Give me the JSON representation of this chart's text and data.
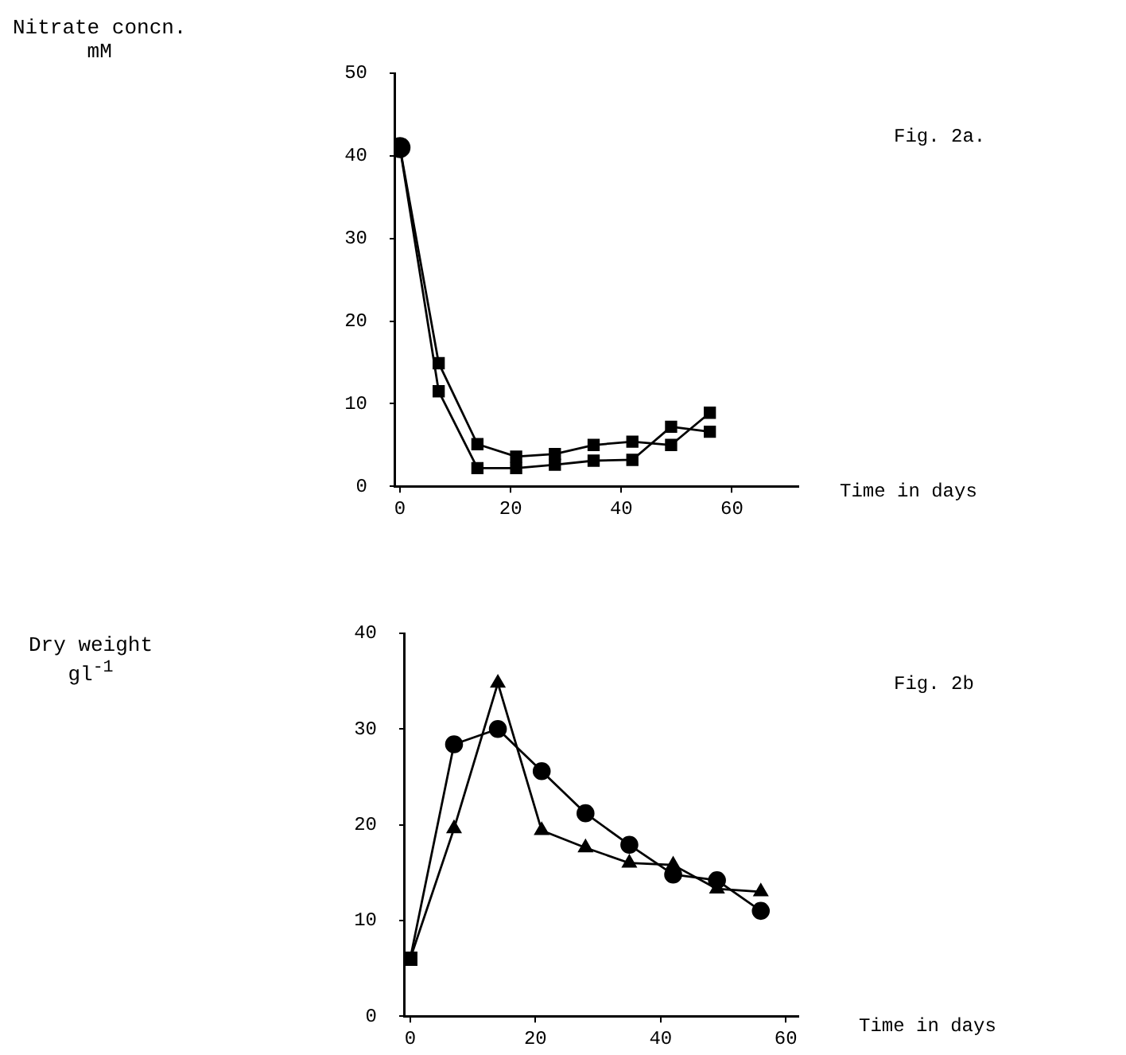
{
  "chart_data": [
    {
      "type": "line",
      "annotations": [
        "Fig. 2a."
      ],
      "ylabel": "Nitrate concn.\nmM",
      "xlabel": "Time in days",
      "xlim": [
        -1,
        72
      ],
      "xticks": [
        0,
        20,
        40,
        60
      ],
      "ylim": [
        0,
        50
      ],
      "yticks": [
        0,
        10,
        20,
        30,
        40,
        50
      ],
      "grid": false,
      "legend": false,
      "line_style": "solid",
      "series": [
        {
          "color": "#000000",
          "marker": "square",
          "x": [
            0,
            7,
            14,
            21,
            28,
            35,
            42,
            49,
            56
          ],
          "values": [
            41,
            14.9,
            5.1,
            3.6,
            3.9,
            5,
            5.4,
            5,
            8.9
          ]
        },
        {
          "color": "#000000",
          "marker": "square",
          "x": [
            0,
            7,
            14,
            21,
            28,
            35,
            42,
            49,
            56
          ],
          "values": [
            41,
            11.5,
            2.2,
            2.2,
            2.6,
            3.1,
            3.2,
            7.2,
            6.6
          ]
        },
        {
          "type": "scatter",
          "color": "#000000",
          "marker": "circle",
          "x": [
            0
          ],
          "values": [
            41
          ]
        }
      ]
    },
    {
      "type": "line",
      "annotations": [
        "Fig. 2b"
      ],
      "ylabel": "Dry weight\ngl$^{-1}$",
      "xlabel": "Time in days",
      "xlim": [
        -1,
        62
      ],
      "xticks": [
        0,
        20,
        40,
        60
      ],
      "ylim": [
        0,
        40
      ],
      "yticks": [
        0,
        10,
        20,
        30,
        40
      ],
      "grid": false,
      "legend": false,
      "line_style": "solid",
      "series": [
        {
          "color": "#000000",
          "marker": "circle",
          "x": [
            0,
            7,
            14,
            21,
            28,
            35,
            42,
            49,
            56
          ],
          "values": [
            6,
            28.4,
            30,
            25.6,
            21.2,
            17.9,
            14.8,
            14.2,
            11
          ]
        },
        {
          "color": "#000000",
          "marker": "triangle",
          "x": [
            0,
            7,
            14,
            21,
            28,
            35,
            42,
            49,
            56
          ],
          "values": [
            6,
            19.6,
            34.8,
            19.4,
            17.6,
            16,
            15.8,
            13.3,
            13
          ]
        },
        {
          "type": "scatter",
          "color": "#000000",
          "marker": "square",
          "x": [
            0
          ],
          "values": [
            6
          ]
        }
      ]
    }
  ]
}
